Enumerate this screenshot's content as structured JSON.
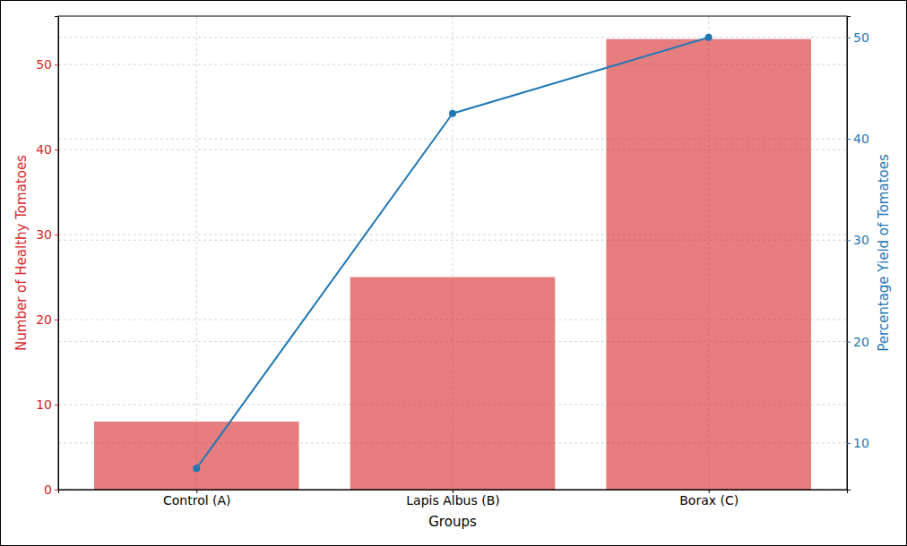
{
  "chart_data": {
    "type": "bar",
    "categories": [
      "Control (A)",
      "Lapis Albus (B)",
      "Borax (C)"
    ],
    "x_label": "Groups",
    "y_label": "Number of Healthy Tomatoes",
    "y2_label": "Percentage Yield of Tomatoes",
    "ylim": [
      0,
      55.7
    ],
    "yticks": [
      0,
      10,
      20,
      30,
      40,
      50
    ],
    "y2lim": [
      5.4,
      52.1
    ],
    "y2ticks": [
      10,
      20,
      30,
      40,
      50
    ],
    "grid": true,
    "series": [
      {
        "type": "bar",
        "color": "#d62728",
        "values": [
          8,
          25,
          53
        ]
      },
      {
        "type": "line",
        "axis": "y2",
        "color": "#1f77b4",
        "marker": "circle",
        "values": [
          7.5,
          42.5,
          50
        ]
      }
    ]
  }
}
